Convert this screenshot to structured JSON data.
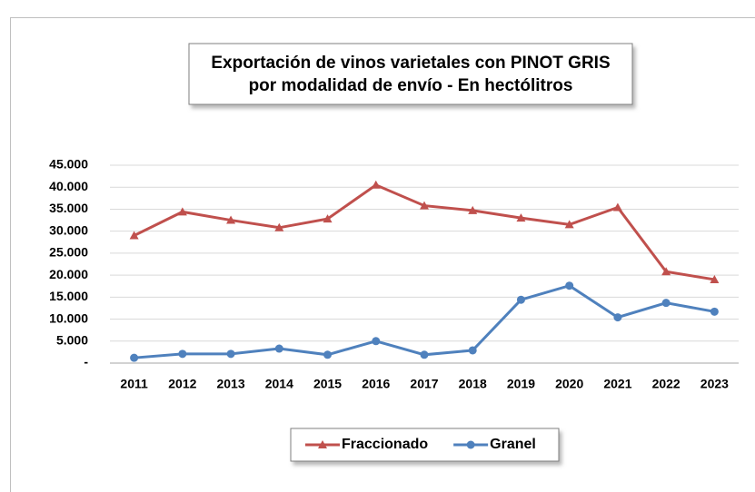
{
  "chart_data": {
    "type": "line",
    "title": [
      "Exportación de vinos varietales con PINOT GRIS",
      "por modalidad de envío - En hectólitros"
    ],
    "categories": [
      "2011",
      "2012",
      "2013",
      "2014",
      "2015",
      "2016",
      "2017",
      "2018",
      "2019",
      "2020",
      "2021",
      "2022",
      "2023"
    ],
    "series": [
      {
        "name": "Fraccionado",
        "color": "#c0504d",
        "marker": "triangle",
        "values": [
          29000,
          34400,
          32500,
          30800,
          32800,
          40500,
          35800,
          34700,
          33000,
          31500,
          35400,
          20800,
          19000
        ]
      },
      {
        "name": "Granel",
        "color": "#4f81bd",
        "marker": "circle",
        "values": [
          1200,
          2100,
          2100,
          3300,
          1900,
          5000,
          1900,
          2900,
          14400,
          17600,
          10400,
          13700,
          11700
        ]
      }
    ],
    "ylim": [
      0,
      45000
    ],
    "yticks": [
      {
        "value": 0,
        "label": "-"
      },
      {
        "value": 5000,
        "label": "5.000"
      },
      {
        "value": 10000,
        "label": "10.000"
      },
      {
        "value": 15000,
        "label": "15.000"
      },
      {
        "value": 20000,
        "label": "20.000"
      },
      {
        "value": 25000,
        "label": "25.000"
      },
      {
        "value": 30000,
        "label": "30.000"
      },
      {
        "value": 35000,
        "label": "35.000"
      },
      {
        "value": 40000,
        "label": "40.000"
      },
      {
        "value": 45000,
        "label": "45.000"
      }
    ],
    "grid": true,
    "legend": "bottom"
  }
}
